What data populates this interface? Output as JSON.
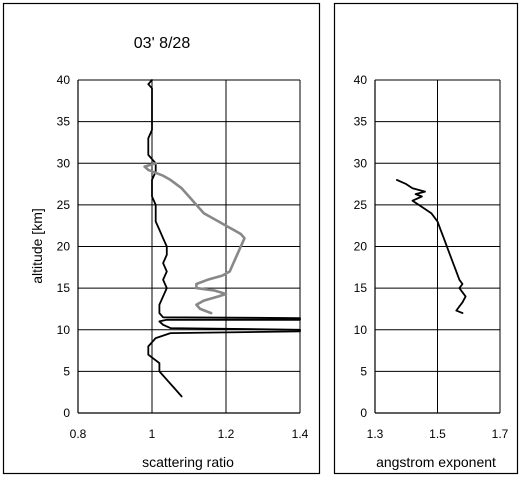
{
  "chart_data": [
    {
      "type": "line",
      "title": "03' 8/28",
      "xlabel": "scattering ratio",
      "ylabel": "altitude [km]",
      "xlim": [
        0.8,
        1.4
      ],
      "ylim": [
        0,
        40
      ],
      "x_ticks": [
        "0.8",
        "1",
        "1.2",
        "1.4"
      ],
      "y_ticks": [
        "0",
        "5",
        "10",
        "15",
        "20",
        "25",
        "30",
        "35",
        "40"
      ],
      "grid": true,
      "series": [
        {
          "color": "#000000",
          "points": [
            [
              1.08,
              2
            ],
            [
              1.06,
              3
            ],
            [
              1.04,
              4
            ],
            [
              1.02,
              5
            ],
            [
              1.02,
              6
            ],
            [
              0.99,
              7
            ],
            [
              0.99,
              8
            ],
            [
              1.01,
              9
            ],
            [
              1.05,
              9.6
            ],
            [
              1.4,
              9.8
            ],
            [
              1.4,
              10
            ],
            [
              1.05,
              10.2
            ],
            [
              1.03,
              10.6
            ],
            [
              1.02,
              11
            ],
            [
              1.04,
              11.2
            ],
            [
              1.4,
              11.2
            ],
            [
              1.4,
              11.4
            ],
            [
              1.03,
              11.5
            ],
            [
              1.02,
              12
            ],
            [
              1.02,
              13
            ],
            [
              1.03,
              14
            ],
            [
              1.04,
              15
            ],
            [
              1.03,
              16
            ],
            [
              1.04,
              17
            ],
            [
              1.03,
              18
            ],
            [
              1.04,
              19
            ],
            [
              1.04,
              20
            ],
            [
              1.03,
              21
            ],
            [
              1.02,
              22
            ],
            [
              1.01,
              23
            ],
            [
              1.01,
              24
            ],
            [
              1.01,
              25
            ],
            [
              1.0,
              26
            ],
            [
              1.0,
              27
            ],
            [
              1.0,
              28
            ],
            [
              1.01,
              29
            ],
            [
              1.01,
              30
            ],
            [
              0.99,
              31
            ],
            [
              0.99,
              32
            ],
            [
              0.99,
              33
            ],
            [
              1.0,
              34
            ],
            [
              1.0,
              35
            ],
            [
              1.0,
              36
            ],
            [
              1.0,
              37
            ],
            [
              1.0,
              38
            ],
            [
              1.0,
              39
            ],
            [
              0.99,
              39.5
            ],
            [
              1.0,
              40
            ]
          ]
        },
        {
          "color": "#888888",
          "points": [
            [
              1.16,
              12
            ],
            [
              1.13,
              12.5
            ],
            [
              1.12,
              13
            ],
            [
              1.14,
              13.5
            ],
            [
              1.18,
              14
            ],
            [
              1.2,
              14.3
            ],
            [
              1.17,
              14.7
            ],
            [
              1.12,
              15
            ],
            [
              1.12,
              15.5
            ],
            [
              1.15,
              16
            ],
            [
              1.19,
              16.5
            ],
            [
              1.21,
              17
            ],
            [
              1.22,
              18
            ],
            [
              1.23,
              19
            ],
            [
              1.24,
              20
            ],
            [
              1.25,
              21
            ],
            [
              1.24,
              21.5
            ],
            [
              1.22,
              22
            ],
            [
              1.2,
              22.5
            ],
            [
              1.18,
              23
            ],
            [
              1.16,
              23.5
            ],
            [
              1.14,
              24
            ],
            [
              1.12,
              25
            ],
            [
              1.1,
              26
            ],
            [
              1.08,
              27
            ],
            [
              1.05,
              28
            ],
            [
              1.03,
              28.5
            ],
            [
              0.99,
              29.2
            ],
            [
              0.98,
              29.6
            ],
            [
              1.01,
              30
            ]
          ]
        }
      ]
    },
    {
      "type": "line",
      "xlabel": "angstrom exponent",
      "xlim": [
        1.3,
        1.7
      ],
      "ylim": [
        0,
        40
      ],
      "x_ticks": [
        "1.3",
        "1.5",
        "1.7"
      ],
      "y_ticks": [
        "0",
        "5",
        "10",
        "15",
        "20",
        "25",
        "30",
        "35",
        "40"
      ],
      "grid": true,
      "series": [
        {
          "color": "#000000",
          "points": [
            [
              1.58,
              12
            ],
            [
              1.56,
              12.3
            ],
            [
              1.57,
              12.8
            ],
            [
              1.58,
              13.3
            ],
            [
              1.59,
              14
            ],
            [
              1.58,
              14.5
            ],
            [
              1.57,
              15
            ],
            [
              1.58,
              15.5
            ],
            [
              1.57,
              16
            ],
            [
              1.56,
              17
            ],
            [
              1.55,
              18
            ],
            [
              1.54,
              19
            ],
            [
              1.53,
              20
            ],
            [
              1.52,
              21
            ],
            [
              1.51,
              22
            ],
            [
              1.5,
              23
            ],
            [
              1.48,
              24
            ],
            [
              1.46,
              24.5
            ],
            [
              1.44,
              25
            ],
            [
              1.42,
              25.5
            ],
            [
              1.45,
              26
            ],
            [
              1.43,
              26.3
            ],
            [
              1.46,
              26.6
            ],
            [
              1.42,
              27
            ],
            [
              1.4,
              27.5
            ],
            [
              1.37,
              28
            ]
          ]
        }
      ]
    }
  ]
}
